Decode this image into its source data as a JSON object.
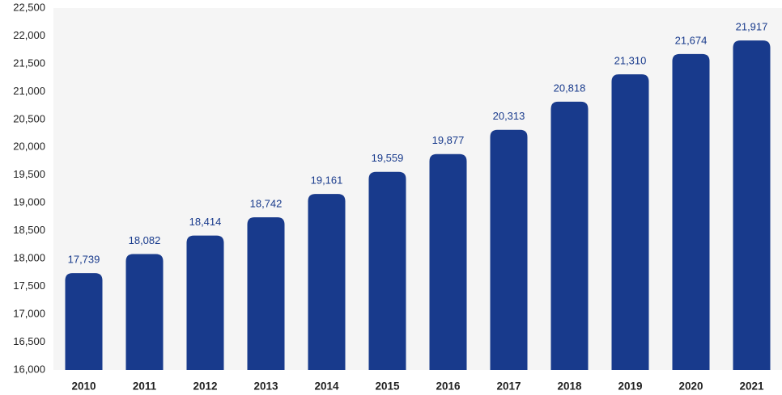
{
  "chart_data": {
    "type": "bar",
    "categories": [
      "2010",
      "2011",
      "2012",
      "2013",
      "2014",
      "2015",
      "2016",
      "2017",
      "2018",
      "2019",
      "2020",
      "2021"
    ],
    "values": [
      17739,
      18082,
      18414,
      18742,
      19161,
      19559,
      19877,
      20313,
      20818,
      21310,
      21674,
      21917
    ],
    "value_labels": [
      "17,739",
      "18,082",
      "18,414",
      "18,742",
      "19,161",
      "19,559",
      "19,877",
      "20,313",
      "20,818",
      "21,310",
      "21,674",
      "21,917"
    ],
    "color": "#183a8c",
    "ylim": [
      16000,
      22500
    ],
    "yticks": [
      {
        "value": 16000,
        "label": "16,000"
      },
      {
        "value": 16500,
        "label": "16,500"
      },
      {
        "value": 17000,
        "label": "17,000"
      },
      {
        "value": 17500,
        "label": "17,500"
      },
      {
        "value": 18000,
        "label": "18,000"
      },
      {
        "value": 18500,
        "label": "18,500"
      },
      {
        "value": 19000,
        "label": "19,000"
      },
      {
        "value": 19500,
        "label": "19,500"
      },
      {
        "value": 20000,
        "label": "20,000"
      },
      {
        "value": 20500,
        "label": "20,500"
      },
      {
        "value": 21000,
        "label": "21,000"
      },
      {
        "value": 21500,
        "label": "21,500"
      },
      {
        "value": 22000,
        "label": "22,000"
      },
      {
        "value": 22500,
        "label": "22,500"
      }
    ],
    "grid": false
  }
}
